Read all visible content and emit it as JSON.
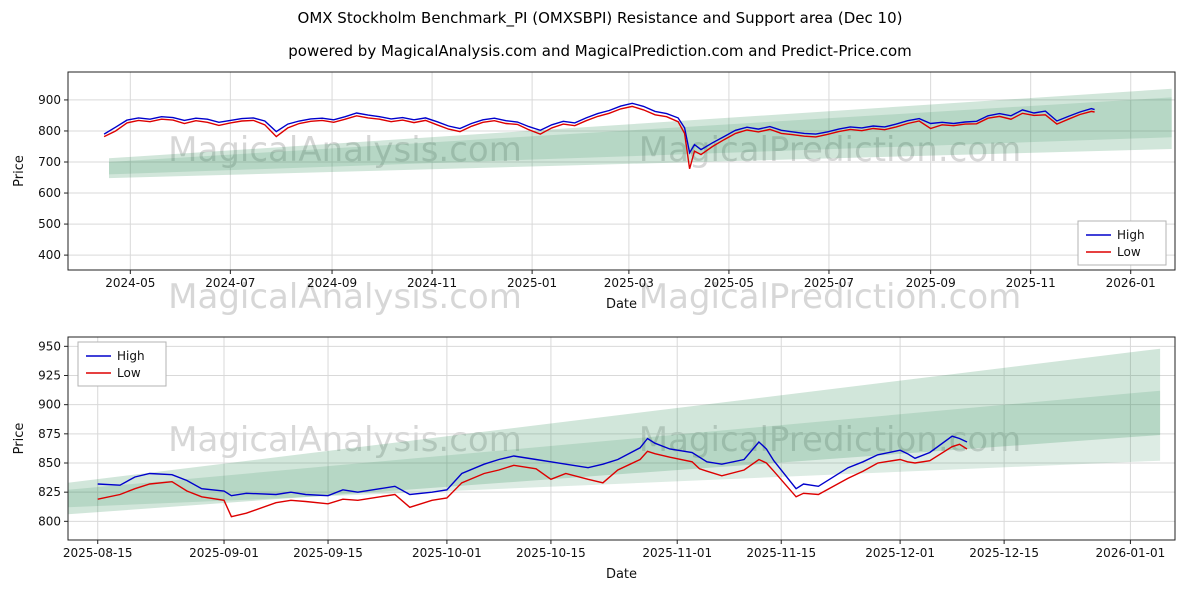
{
  "figure": {
    "title": "OMX Stockholm Benchmark_PI (OMXSBPI) Resistance and Support area (Dec 10)",
    "subtitle": "powered by MagicalAnalysis.com and MagicalPrediction.com and Predict-Price.com"
  },
  "watermarks": [
    "MagicalAnalysis.com",
    "MagicalPrediction.com"
  ],
  "colors": {
    "high": "#0000cc",
    "low": "#dd0000",
    "support_area": "#2e8b57",
    "grid": "#d9d9d9"
  },
  "chart_data": [
    {
      "type": "line",
      "name": "overview-chart",
      "xlabel": "Date",
      "ylabel": "Price",
      "grid": true,
      "legend_loc": "center right",
      "xlim": [
        "2024-03-24",
        "2026-01-28"
      ],
      "ylim": [
        352,
        990
      ],
      "yticks": [
        400,
        500,
        600,
        700,
        800,
        900
      ],
      "xtick_dates": [
        "2024-05-01",
        "2024-07-01",
        "2024-09-01",
        "2024-11-01",
        "2025-01-01",
        "2025-03-01",
        "2025-05-01",
        "2025-07-01",
        "2025-09-01",
        "2025-11-01",
        "2026-01-01"
      ],
      "xtick_labels": [
        "2024-05",
        "2024-07",
        "2024-09",
        "2024-11",
        "2025-01",
        "2025-03",
        "2025-05",
        "2025-07",
        "2025-09",
        "2025-11",
        "2026-01"
      ],
      "dates": [
        "2024-04-15",
        "2024-04-22",
        "2024-04-29",
        "2024-05-06",
        "2024-05-13",
        "2024-05-20",
        "2024-05-27",
        "2024-06-03",
        "2024-06-10",
        "2024-06-17",
        "2024-06-24",
        "2024-07-01",
        "2024-07-08",
        "2024-07-15",
        "2024-07-22",
        "2024-07-29",
        "2024-08-05",
        "2024-08-12",
        "2024-08-19",
        "2024-08-26",
        "2024-09-02",
        "2024-09-09",
        "2024-09-16",
        "2024-09-23",
        "2024-09-30",
        "2024-10-07",
        "2024-10-14",
        "2024-10-21",
        "2024-10-28",
        "2024-11-04",
        "2024-11-11",
        "2024-11-18",
        "2024-11-25",
        "2024-12-02",
        "2024-12-09",
        "2024-12-16",
        "2024-12-23",
        "2024-12-30",
        "2025-01-06",
        "2025-01-13",
        "2025-01-20",
        "2025-01-27",
        "2025-02-03",
        "2025-02-10",
        "2025-02-17",
        "2025-02-24",
        "2025-03-03",
        "2025-03-10",
        "2025-03-17",
        "2025-03-24",
        "2025-03-31",
        "2025-04-04",
        "2025-04-07",
        "2025-04-10",
        "2025-04-14",
        "2025-04-21",
        "2025-04-28",
        "2025-05-05",
        "2025-05-12",
        "2025-05-19",
        "2025-05-26",
        "2025-06-02",
        "2025-06-09",
        "2025-06-16",
        "2025-06-23",
        "2025-06-30",
        "2025-07-07",
        "2025-07-14",
        "2025-07-21",
        "2025-07-28",
        "2025-08-04",
        "2025-08-11",
        "2025-08-18",
        "2025-08-25",
        "2025-09-01",
        "2025-09-08",
        "2025-09-15",
        "2025-09-22",
        "2025-09-29",
        "2025-10-06",
        "2025-10-13",
        "2025-10-20",
        "2025-10-27",
        "2025-11-03",
        "2025-11-10",
        "2025-11-17",
        "2025-11-24",
        "2025-12-01",
        "2025-12-08",
        "2025-12-10"
      ],
      "series": [
        {
          "name": "High",
          "color": "#0000cc",
          "values": [
            790,
            812,
            835,
            842,
            838,
            846,
            843,
            834,
            841,
            838,
            828,
            834,
            840,
            842,
            832,
            798,
            822,
            832,
            839,
            841,
            836,
            846,
            858,
            851,
            846,
            839,
            843,
            836,
            842,
            830,
            816,
            808,
            824,
            836,
            841,
            833,
            829,
            814,
            802,
            820,
            831,
            826,
            842,
            856,
            866,
            880,
            889,
            879,
            863,
            856,
            842,
            810,
            730,
            756,
            740,
            762,
            782,
            802,
            812,
            806,
            814,
            802,
            797,
            792,
            790,
            797,
            806,
            813,
            810,
            816,
            813,
            822,
            833,
            840,
            824,
            828,
            824,
            829,
            831,
            849,
            856,
            849,
            868,
            858,
            864,
            832,
            847,
            861,
            872,
            869
          ]
        },
        {
          "name": "Low",
          "color": "#dd0000",
          "values": [
            782,
            800,
            826,
            834,
            830,
            838,
            835,
            824,
            833,
            828,
            818,
            826,
            832,
            834,
            820,
            782,
            810,
            824,
            831,
            834,
            828,
            838,
            849,
            842,
            838,
            830,
            835,
            827,
            834,
            820,
            806,
            798,
            815,
            828,
            833,
            824,
            821,
            804,
            790,
            810,
            822,
            817,
            833,
            847,
            857,
            871,
            879,
            868,
            852,
            846,
            830,
            792,
            678,
            735,
            724,
            750,
            772,
            792,
            803,
            797,
            805,
            792,
            788,
            783,
            781,
            789,
            798,
            805,
            801,
            808,
            804,
            813,
            824,
            832,
            808,
            820,
            817,
            822,
            823,
            841,
            847,
            838,
            857,
            850,
            852,
            822,
            838,
            853,
            863,
            861
          ]
        }
      ],
      "areas": [
        {
          "name": "support-resistance-outer",
          "color": "#2e8b57",
          "opacity": 0.22,
          "points": [
            [
              "2024-04-18",
              648
            ],
            [
              "2026-01-26",
              742
            ],
            [
              "2026-01-26",
              936
            ],
            [
              "2024-04-18",
              712
            ]
          ]
        },
        {
          "name": "support-resistance-inner",
          "color": "#2e8b57",
          "opacity": 0.16,
          "points": [
            [
              "2024-04-18",
              660
            ],
            [
              "2026-01-26",
              780
            ],
            [
              "2026-01-26",
              908
            ],
            [
              "2024-04-18",
              700
            ]
          ]
        }
      ]
    },
    {
      "type": "line",
      "name": "zoom-chart",
      "xlabel": "Date",
      "ylabel": "Price",
      "grid": true,
      "legend_loc": "upper left",
      "xlim": [
        "2025-08-11",
        "2026-01-07"
      ],
      "ylim": [
        784,
        958
      ],
      "yticks": [
        800,
        825,
        850,
        875,
        900,
        925,
        950
      ],
      "xtick_dates": [
        "2025-08-15",
        "2025-09-01",
        "2025-09-15",
        "2025-10-01",
        "2025-10-15",
        "2025-11-01",
        "2025-11-15",
        "2025-12-01",
        "2025-12-15",
        "2026-01-01"
      ],
      "xtick_labels": [
        "2025-08-15",
        "2025-09-01",
        "2025-09-15",
        "2025-10-01",
        "2025-10-15",
        "2025-11-01",
        "2025-11-15",
        "2025-12-01",
        "2025-12-15",
        "2026-01-01"
      ],
      "dates": [
        "2025-08-15",
        "2025-08-18",
        "2025-08-20",
        "2025-08-22",
        "2025-08-25",
        "2025-08-27",
        "2025-08-29",
        "2025-09-01",
        "2025-09-02",
        "2025-09-04",
        "2025-09-08",
        "2025-09-10",
        "2025-09-12",
        "2025-09-15",
        "2025-09-17",
        "2025-09-19",
        "2025-09-22",
        "2025-09-24",
        "2025-09-26",
        "2025-09-29",
        "2025-10-01",
        "2025-10-03",
        "2025-10-06",
        "2025-10-08",
        "2025-10-10",
        "2025-10-13",
        "2025-10-15",
        "2025-10-17",
        "2025-10-20",
        "2025-10-22",
        "2025-10-24",
        "2025-10-27",
        "2025-10-28",
        "2025-10-29",
        "2025-10-31",
        "2025-11-03",
        "2025-11-04",
        "2025-11-05",
        "2025-11-07",
        "2025-11-10",
        "2025-11-12",
        "2025-11-13",
        "2025-11-14",
        "2025-11-17",
        "2025-11-18",
        "2025-11-20",
        "2025-11-24",
        "2025-11-26",
        "2025-11-28",
        "2025-12-01",
        "2025-12-02",
        "2025-12-03",
        "2025-12-05",
        "2025-12-08",
        "2025-12-09",
        "2025-12-10"
      ],
      "series": [
        {
          "name": "High",
          "color": "#0000cc",
          "values": [
            832,
            831,
            838,
            841,
            840,
            835,
            828,
            826,
            822,
            824,
            823,
            825,
            823,
            822,
            827,
            825,
            828,
            830,
            823,
            825,
            827,
            841,
            849,
            853,
            856,
            853,
            851,
            849,
            846,
            849,
            853,
            863,
            871,
            867,
            862,
            859,
            855,
            851,
            849,
            853,
            868,
            862,
            852,
            828,
            832,
            830,
            846,
            851,
            857,
            861,
            858,
            854,
            859,
            873,
            871,
            868
          ]
        },
        {
          "name": "Low",
          "color": "#dd0000",
          "values": [
            819,
            823,
            828,
            832,
            834,
            826,
            821,
            818,
            804,
            807,
            816,
            818,
            817,
            815,
            819,
            818,
            821,
            823,
            812,
            818,
            820,
            833,
            841,
            844,
            848,
            845,
            836,
            841,
            836,
            833,
            844,
            853,
            860,
            858,
            855,
            851,
            845,
            843,
            839,
            844,
            853,
            850,
            843,
            821,
            824,
            823,
            837,
            843,
            850,
            853,
            851,
            850,
            852,
            864,
            866,
            862
          ]
        }
      ],
      "areas": [
        {
          "name": "support-resistance-outer",
          "color": "#2e8b57",
          "opacity": 0.22,
          "points": [
            [
              "2025-08-11",
              806
            ],
            [
              "2026-01-05",
              874
            ],
            [
              "2026-01-05",
              948
            ],
            [
              "2025-08-11",
              833
            ]
          ]
        },
        {
          "name": "support-resistance-inner",
          "color": "#2e8b57",
          "opacity": 0.16,
          "points": [
            [
              "2025-08-11",
              812
            ],
            [
              "2026-01-05",
              852
            ],
            [
              "2026-01-05",
              912
            ],
            [
              "2025-08-11",
              827
            ]
          ]
        }
      ]
    }
  ]
}
